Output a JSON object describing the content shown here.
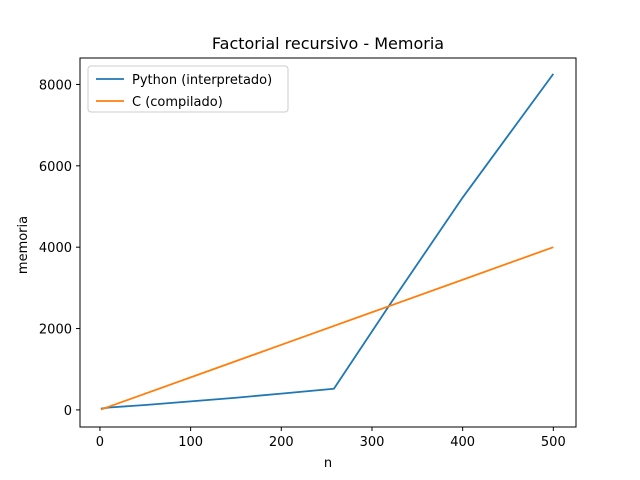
{
  "chart_data": {
    "type": "line",
    "title": "Factorial recursivo - Memoria",
    "xlabel": "n",
    "ylabel": "memoria",
    "xlim": [
      -22,
      525
    ],
    "ylim": [
      -420,
      8650
    ],
    "x_ticks": [
      0,
      100,
      200,
      300,
      400,
      500
    ],
    "y_ticks": [
      0,
      2000,
      4000,
      6000,
      8000
    ],
    "grid": false,
    "legend_position": "upper left",
    "series": [
      {
        "name": "Python (interpretado)",
        "color": "#1f77b4",
        "points": [
          [
            1,
            30
          ],
          [
            10,
            60
          ],
          [
            50,
            120
          ],
          [
            100,
            210
          ],
          [
            150,
            300
          ],
          [
            200,
            400
          ],
          [
            258,
            520
          ],
          [
            320,
            2600
          ],
          [
            400,
            5220
          ],
          [
            500,
            8260
          ]
        ]
      },
      {
        "name": "C (compilado)",
        "color": "#ff7f0e",
        "points": [
          [
            1,
            8
          ],
          [
            100,
            800
          ],
          [
            200,
            1600
          ],
          [
            300,
            2400
          ],
          [
            400,
            3200
          ],
          [
            500,
            4000
          ]
        ]
      }
    ]
  }
}
